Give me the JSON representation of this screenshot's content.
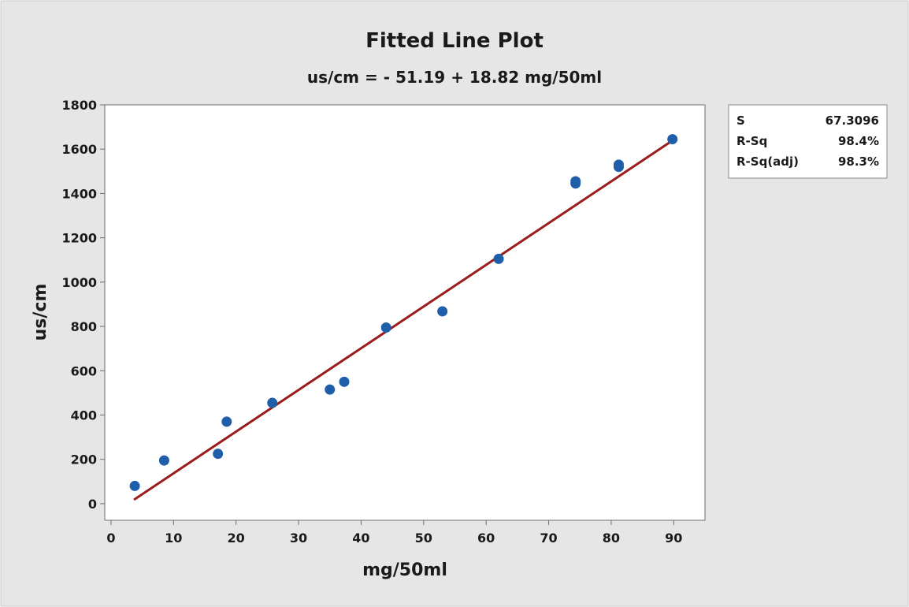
{
  "chart_data": {
    "type": "scatter",
    "title": "Fitted Line Plot",
    "subtitle": "us/cm = - 51.19 + 18.82 mg/50ml",
    "xlabel": "mg/50ml",
    "ylabel": "us/cm",
    "xlim": [
      -1,
      95
    ],
    "ylim": [
      -75,
      1800
    ],
    "xticks": [
      0,
      10,
      20,
      30,
      40,
      50,
      60,
      70,
      80,
      90
    ],
    "xtick_labels": [
      "0",
      "10",
      "20",
      "30",
      "40",
      "50",
      "60",
      "70",
      "80",
      "90"
    ],
    "yticks": [
      0,
      200,
      400,
      600,
      800,
      1000,
      1200,
      1400,
      1600,
      1800
    ],
    "ytick_labels": [
      "0",
      "200",
      "400",
      "600",
      "800",
      "1000",
      "1200",
      "1400",
      "1600",
      "1800"
    ],
    "grid": false,
    "points": [
      {
        "x": 3.8,
        "y": 80
      },
      {
        "x": 8.5,
        "y": 195
      },
      {
        "x": 17.1,
        "y": 225
      },
      {
        "x": 18.5,
        "y": 370
      },
      {
        "x": 25.8,
        "y": 455
      },
      {
        "x": 35.0,
        "y": 515
      },
      {
        "x": 37.3,
        "y": 550
      },
      {
        "x": 44.0,
        "y": 795
      },
      {
        "x": 53.0,
        "y": 868
      },
      {
        "x": 62.0,
        "y": 1105
      },
      {
        "x": 74.3,
        "y": 1445
      },
      {
        "x": 74.3,
        "y": 1455
      },
      {
        "x": 81.2,
        "y": 1520
      },
      {
        "x": 81.2,
        "y": 1530
      },
      {
        "x": 89.8,
        "y": 1645
      }
    ],
    "fit": {
      "intercept": -51.19,
      "slope": 18.82,
      "x_range": [
        3.8,
        89.8
      ]
    },
    "stats": [
      {
        "label": "S",
        "value": "67.3096"
      },
      {
        "label": "R-Sq",
        "value": "98.4%"
      },
      {
        "label": "R-Sq(adj)",
        "value": "98.3%"
      }
    ],
    "colors": {
      "background": "#e6e6e6",
      "plot_area": "#ffffff",
      "point": "#1f5ea8",
      "fit_line": "#9b1c1c",
      "axis": "#6e6e6e"
    }
  }
}
